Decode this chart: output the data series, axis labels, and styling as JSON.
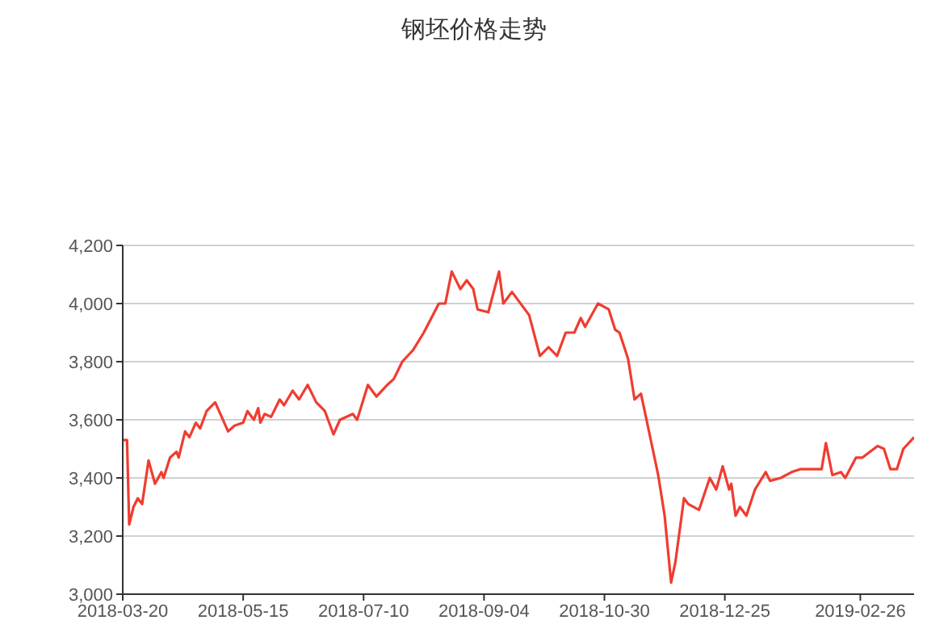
{
  "chart_data": {
    "type": "line",
    "title": "钢坯价格走势",
    "x": [
      "2018-03-20",
      "2018-03-22",
      "2018-03-23",
      "2018-03-25",
      "2018-03-27",
      "2018-03-29",
      "2018-04-01",
      "2018-04-04",
      "2018-04-07",
      "2018-04-08",
      "2018-04-11",
      "2018-04-14",
      "2018-04-15",
      "2018-04-18",
      "2018-04-20",
      "2018-04-23",
      "2018-04-25",
      "2018-04-28",
      "2018-05-02",
      "2018-05-05",
      "2018-05-08",
      "2018-05-11",
      "2018-05-15",
      "2018-05-17",
      "2018-05-20",
      "2018-05-22",
      "2018-05-23",
      "2018-05-25",
      "2018-05-28",
      "2018-06-01",
      "2018-06-03",
      "2018-06-07",
      "2018-06-10",
      "2018-06-14",
      "2018-06-18",
      "2018-06-22",
      "2018-06-26",
      "2018-06-29",
      "2018-07-05",
      "2018-07-07",
      "2018-07-12",
      "2018-07-16",
      "2018-07-21",
      "2018-07-24",
      "2018-07-28",
      "2018-08-02",
      "2018-08-07",
      "2018-08-14",
      "2018-08-17",
      "2018-08-20",
      "2018-08-24",
      "2018-08-27",
      "2018-08-30",
      "2018-09-01",
      "2018-09-06",
      "2018-09-11",
      "2018-09-13",
      "2018-09-17",
      "2018-09-20",
      "2018-09-25",
      "2018-09-30",
      "2018-10-04",
      "2018-10-08",
      "2018-10-12",
      "2018-10-16",
      "2018-10-19",
      "2018-10-21",
      "2018-10-27",
      "2018-11-01",
      "2018-11-04",
      "2018-11-06",
      "2018-11-10",
      "2018-11-13",
      "2018-11-16",
      "2018-11-20",
      "2018-11-24",
      "2018-11-27",
      "2018-11-30",
      "2018-12-02",
      "2018-12-06",
      "2018-12-08",
      "2018-12-13",
      "2018-12-18",
      "2018-12-21",
      "2018-12-24",
      "2018-12-27",
      "2018-12-28",
      "2018-12-30",
      "2019-01-01",
      "2019-01-04",
      "2019-01-08",
      "2019-01-13",
      "2019-01-15",
      "2019-01-20",
      "2019-01-25",
      "2019-01-29",
      "2019-02-08",
      "2019-02-10",
      "2019-02-13",
      "2019-02-17",
      "2019-02-19",
      "2019-02-24",
      "2019-02-27",
      "2019-03-06",
      "2019-03-09",
      "2019-03-12",
      "2019-03-15",
      "2019-03-18",
      "2019-03-23"
    ],
    "series": [
      {
        "color": "#f03c30",
        "values": [
          3530,
          3530,
          3240,
          3300,
          3330,
          3310,
          3460,
          3380,
          3420,
          3400,
          3470,
          3490,
          3470,
          3560,
          3540,
          3590,
          3570,
          3630,
          3660,
          3610,
          3560,
          3580,
          3590,
          3630,
          3600,
          3640,
          3590,
          3620,
          3610,
          3670,
          3650,
          3700,
          3670,
          3720,
          3660,
          3630,
          3550,
          3600,
          3620,
          3600,
          3720,
          3680,
          3720,
          3740,
          3800,
          3840,
          3900,
          4000,
          4000,
          4110,
          4050,
          4080,
          4050,
          3980,
          3970,
          4110,
          4000,
          4040,
          4010,
          3960,
          3820,
          3850,
          3820,
          3900,
          3900,
          3950,
          3920,
          4000,
          3980,
          3910,
          3900,
          3810,
          3670,
          3690,
          3550,
          3410,
          3270,
          3040,
          3110,
          3330,
          3310,
          3290,
          3400,
          3360,
          3440,
          3360,
          3380,
          3270,
          3300,
          3270,
          3360,
          3420,
          3390,
          3400,
          3420,
          3430,
          3430,
          3520,
          3410,
          3420,
          3400,
          3470,
          3470,
          3510,
          3500,
          3430,
          3430,
          3500,
          3540
        ]
      }
    ],
    "xlim": [
      "2018-03-20",
      "2019-03-23"
    ],
    "xticks": [
      "2018-03-20",
      "2018-05-15",
      "2018-07-10",
      "2018-09-04",
      "2018-10-30",
      "2018-12-25",
      "2019-02-26"
    ],
    "ylim": [
      3000,
      4200
    ],
    "yticks": [
      {
        "value": 3000,
        "label": "3,000"
      },
      {
        "value": 3200,
        "label": "3,200"
      },
      {
        "value": 3400,
        "label": "3,400"
      },
      {
        "value": 3600,
        "label": "3,600"
      },
      {
        "value": 3800,
        "label": "3,800"
      },
      {
        "value": 4000,
        "label": "4,000"
      },
      {
        "value": 4200,
        "label": "4,200"
      }
    ],
    "grid": "y",
    "legend": false,
    "marker": "none",
    "line_style": "solid"
  }
}
